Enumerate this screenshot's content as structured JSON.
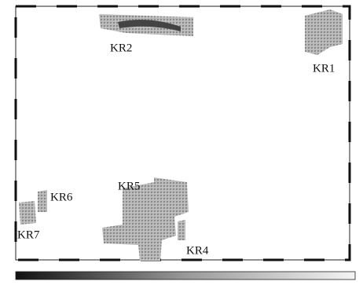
{
  "regions": [
    {
      "label": "KR1"
    },
    {
      "label": "KR2"
    },
    {
      "label": "KR4"
    },
    {
      "label": "KR5"
    },
    {
      "label": "KR6"
    },
    {
      "label": "KR7"
    }
  ]
}
